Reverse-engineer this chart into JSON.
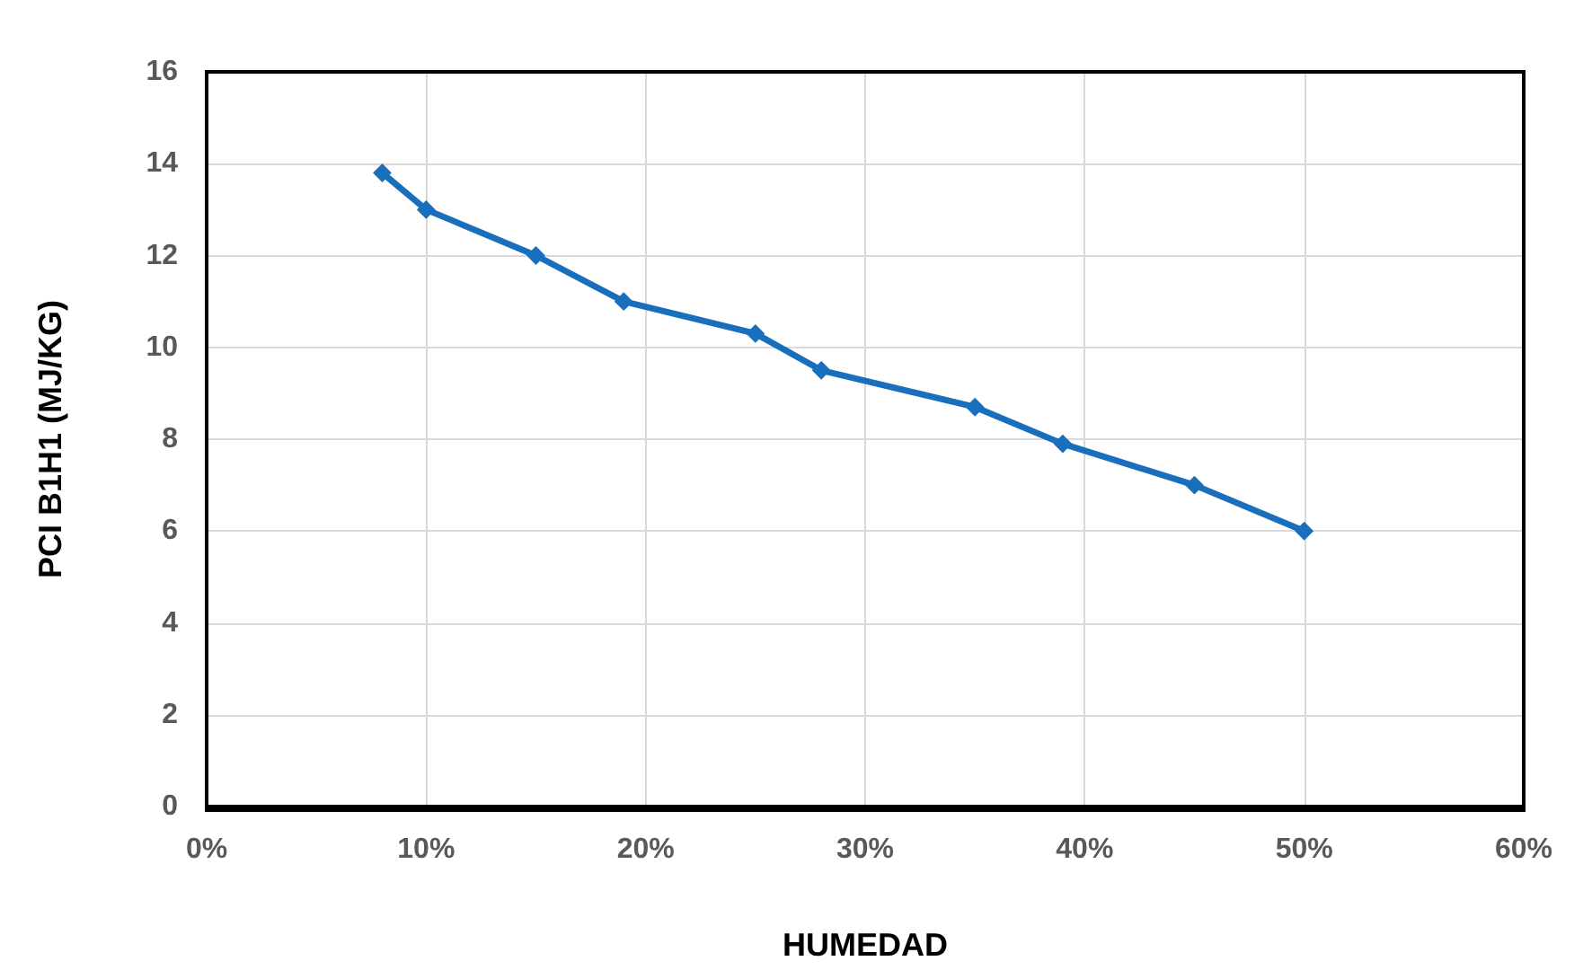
{
  "chart_data": {
    "type": "line",
    "xlabel": "HUMEDAD",
    "ylabel": "PCI B1H1 (MJ/KG)",
    "x": [
      8,
      10,
      15,
      19,
      25,
      28,
      35,
      39,
      45,
      50
    ],
    "series": [
      {
        "color": "#1a6fbd",
        "values": [
          13.8,
          13.0,
          12.0,
          11.0,
          10.3,
          9.5,
          8.7,
          7.9,
          7.0,
          6.0
        ]
      }
    ],
    "xlim": [
      0,
      60
    ],
    "xticks": [
      {
        "value": 0,
        "label": "0%"
      },
      {
        "value": 10,
        "label": "10%"
      },
      {
        "value": 20,
        "label": "20%"
      },
      {
        "value": 30,
        "label": "30%"
      },
      {
        "value": 40,
        "label": "40%"
      },
      {
        "value": 50,
        "label": "50%"
      },
      {
        "value": 60,
        "label": "60%"
      }
    ],
    "ylim": [
      0,
      16
    ],
    "yticks": [
      0,
      2,
      4,
      6,
      8,
      10,
      12,
      14,
      16
    ],
    "grid": true,
    "marker": "diamond",
    "line_style": "solid"
  }
}
